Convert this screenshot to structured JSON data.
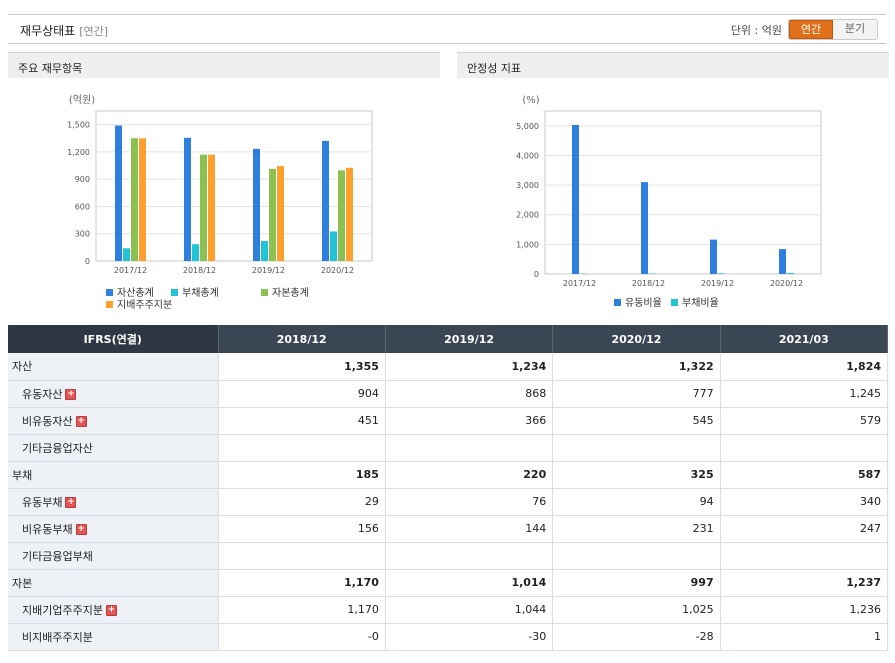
{
  "header": {
    "title": "재무상태표",
    "subtitle": "[연간]",
    "unit_label": "단위 : 억원",
    "toggle": [
      "연간",
      "분기"
    ],
    "active_toggle": 0
  },
  "panels": {
    "left_title": "주요 재무항목",
    "right_title": "안정성 지표"
  },
  "colors": {
    "blue": "#2f7fde",
    "cyan": "#22c3d6",
    "green": "#8cc152",
    "orange": "#ff9f2e",
    "accent": "#e0701a",
    "header_bg": "#3b4654",
    "negative": "#d02020"
  },
  "chart_data": [
    {
      "type": "bar",
      "title": "",
      "ylabel": "(억원)",
      "categories": [
        "2017/12",
        "2018/12",
        "2019/12",
        "2020/12"
      ],
      "yticks": [
        "0",
        "300",
        "600",
        "900",
        "1,200",
        "1,500"
      ],
      "ylim": [
        0,
        1650
      ],
      "legend_placement": "bottom",
      "grid": true,
      "series": [
        {
          "name": "자산총계",
          "color": "#2f7fde",
          "values": [
            1490,
            1355,
            1234,
            1322
          ]
        },
        {
          "name": "부채총계",
          "color": "#22c3d6",
          "values": [
            140,
            185,
            220,
            325
          ]
        },
        {
          "name": "자본총계",
          "color": "#8cc152",
          "values": [
            1350,
            1170,
            1014,
            997
          ]
        },
        {
          "name": "지배주주지분",
          "color": "#ff9f2e",
          "values": [
            1350,
            1170,
            1044,
            1025
          ]
        }
      ]
    },
    {
      "type": "bar",
      "title": "",
      "ylabel": "(%)",
      "categories": [
        "2017/12",
        "2018/12",
        "2019/12",
        "2020/12"
      ],
      "yticks": [
        "0",
        "1,000",
        "2,000",
        "3,000",
        "4,000",
        "5,000"
      ],
      "ylim": [
        0,
        5500
      ],
      "legend_placement": "bottom",
      "grid": true,
      "series": [
        {
          "name": "유동비율",
          "color": "#2f7fde",
          "values": [
            5030,
            3100,
            1160,
            840
          ]
        },
        {
          "name": "부채비율",
          "color": "#22c3d6",
          "values": [
            10,
            16,
            22,
            33
          ]
        }
      ]
    }
  ],
  "table": {
    "header_first": "IFRS(연결)",
    "columns": [
      "2018/12",
      "2019/12",
      "2020/12",
      "2021/03"
    ],
    "rows": [
      {
        "label": "자산",
        "type": "total",
        "plus": false,
        "values": [
          "1,355",
          "1,234",
          "1,322",
          "1,824"
        ]
      },
      {
        "label": "유동자산",
        "type": "sub",
        "plus": true,
        "values": [
          "904",
          "868",
          "777",
          "1,245"
        ]
      },
      {
        "label": "비유동자산",
        "type": "sub",
        "plus": true,
        "values": [
          "451",
          "366",
          "545",
          "579"
        ]
      },
      {
        "label": "기타금융업자산",
        "type": "sub",
        "plus": false,
        "values": [
          "",
          "",
          "",
          ""
        ]
      },
      {
        "label": "부채",
        "type": "total",
        "plus": false,
        "values": [
          "185",
          "220",
          "325",
          "587"
        ]
      },
      {
        "label": "유동부채",
        "type": "sub",
        "plus": true,
        "values": [
          "29",
          "76",
          "94",
          "340"
        ]
      },
      {
        "label": "비유동부채",
        "type": "sub",
        "plus": true,
        "values": [
          "156",
          "144",
          "231",
          "247"
        ]
      },
      {
        "label": "기타금융업부채",
        "type": "sub",
        "plus": false,
        "values": [
          "",
          "",
          "",
          ""
        ]
      },
      {
        "label": "자본",
        "type": "total",
        "plus": false,
        "values": [
          "1,170",
          "1,014",
          "997",
          "1,237"
        ]
      },
      {
        "label": "지배기업주주지분",
        "type": "sub",
        "plus": true,
        "values": [
          "1,170",
          "1,044",
          "1,025",
          "1,236"
        ]
      },
      {
        "label": "비지배주주지분",
        "type": "sub",
        "plus": false,
        "values": [
          "-0",
          "-30",
          "-28",
          "1"
        ]
      }
    ]
  }
}
